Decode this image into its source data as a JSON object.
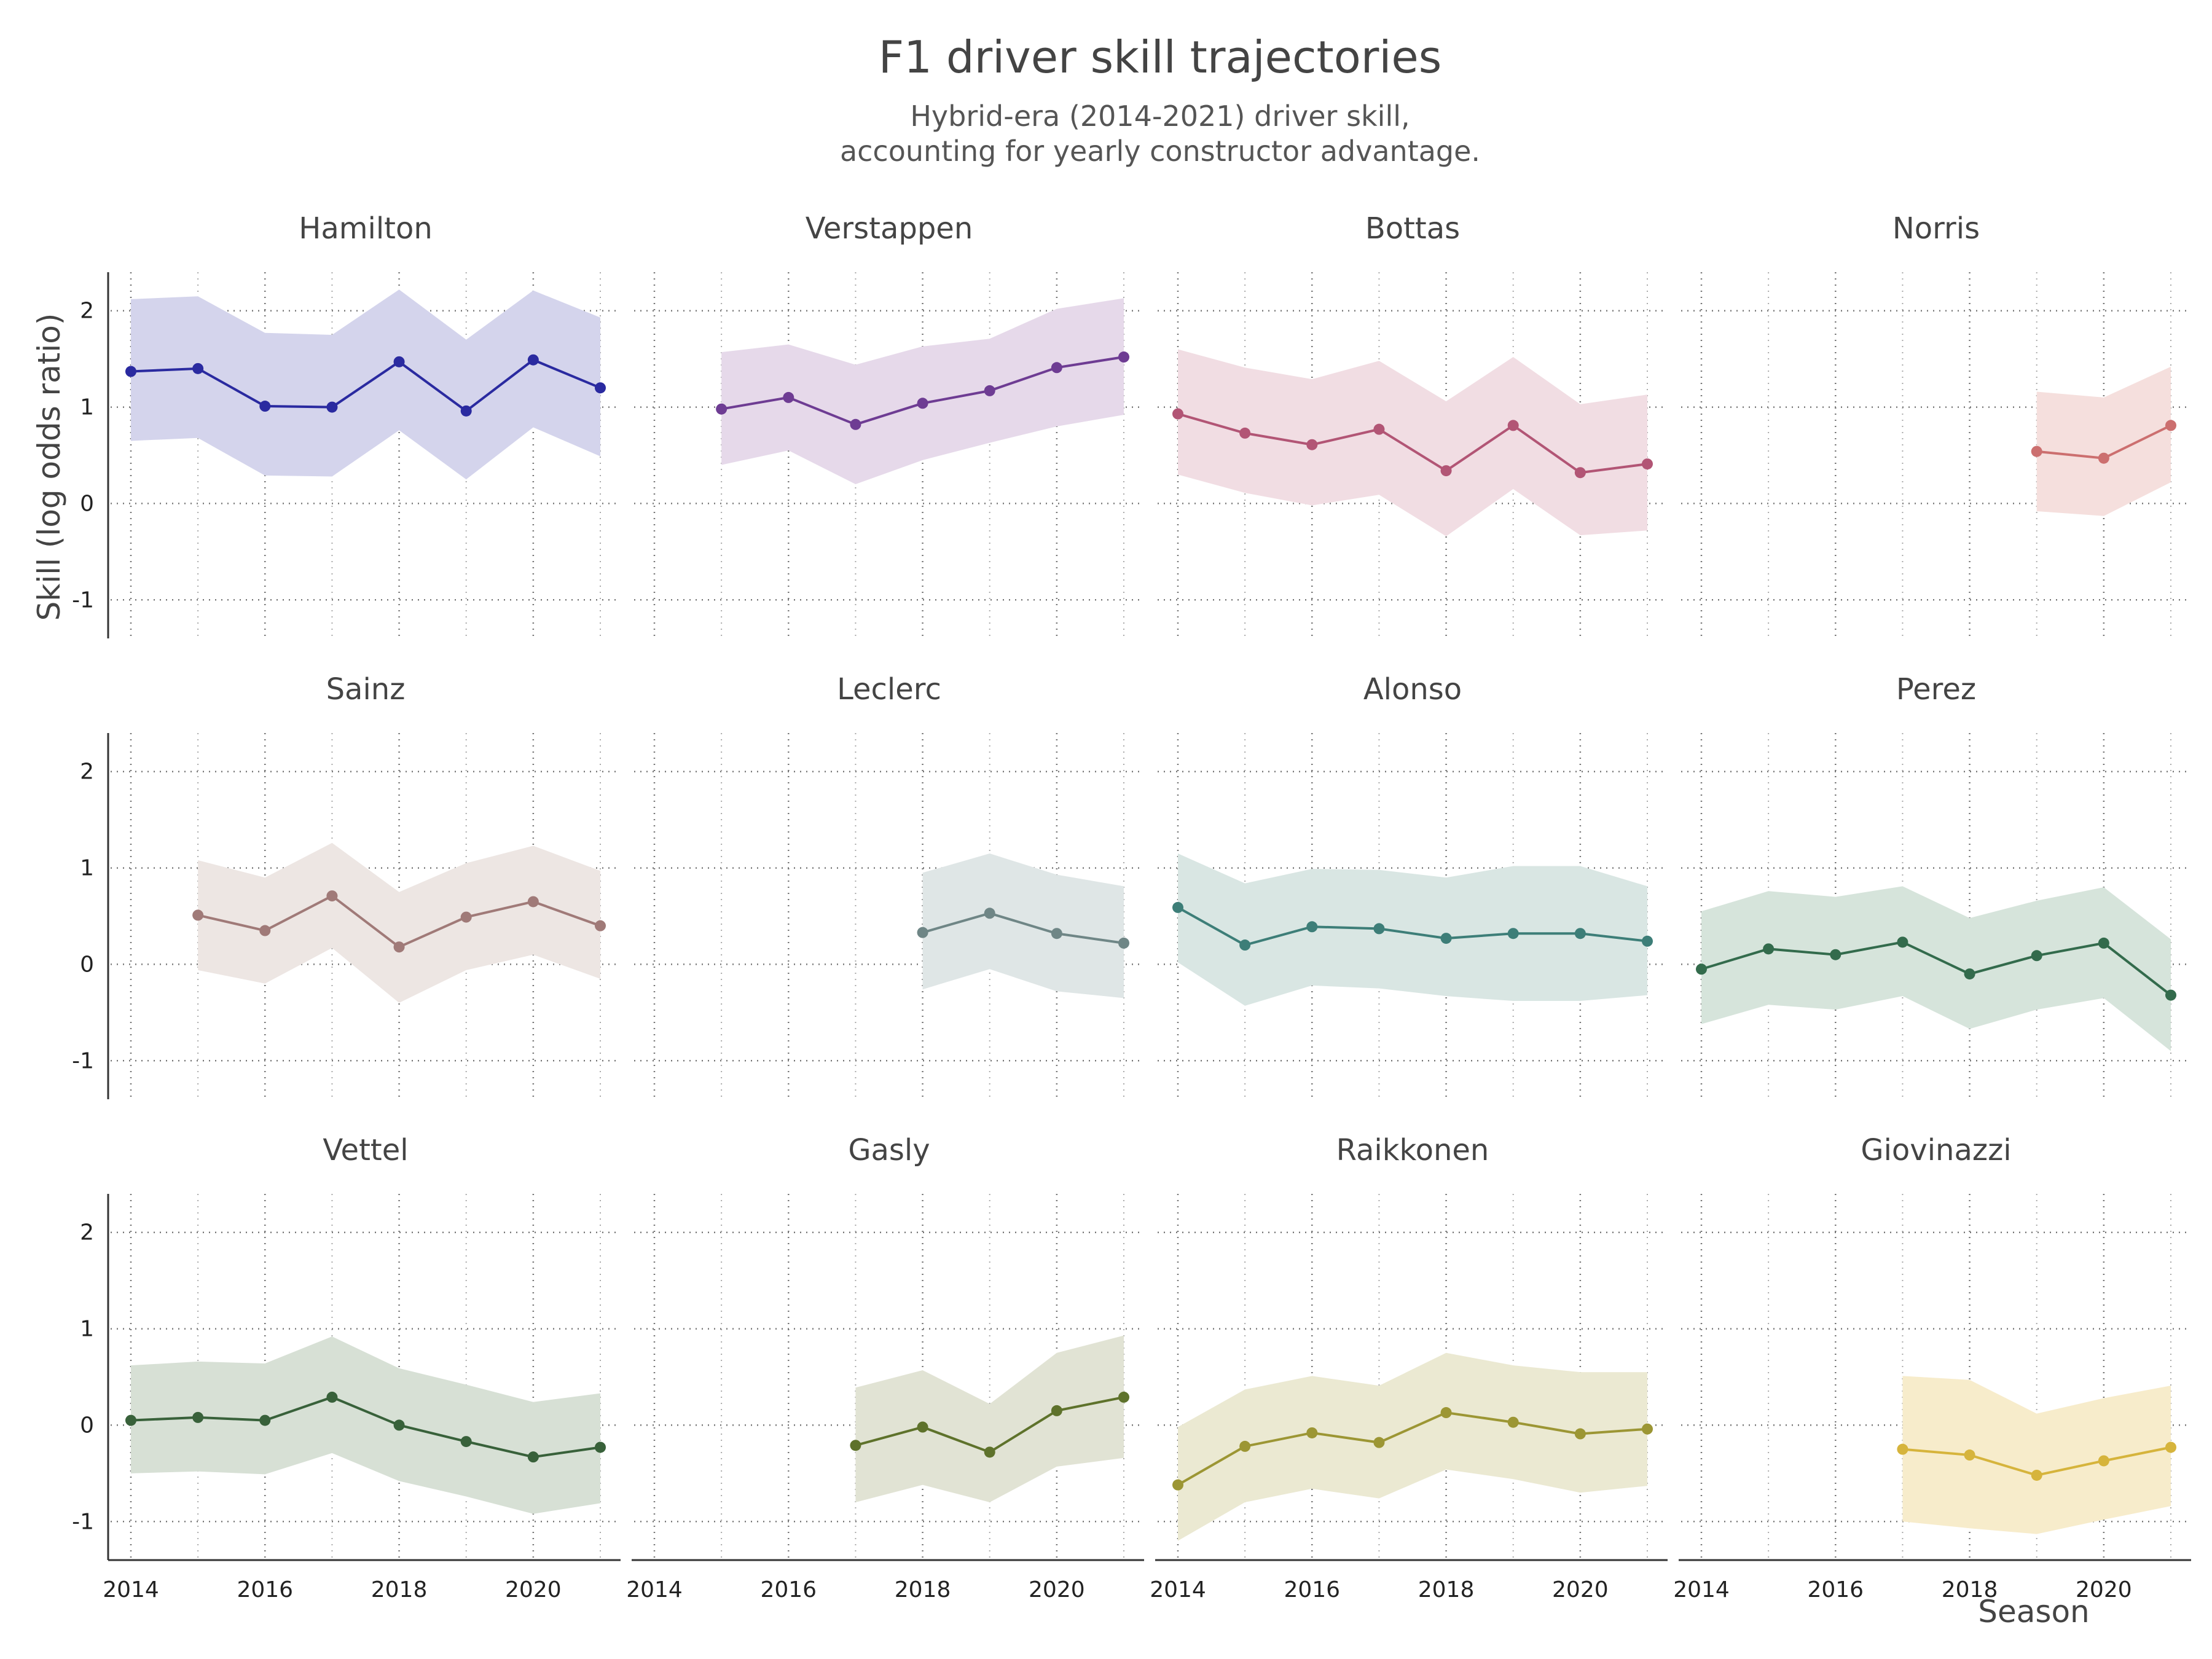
{
  "title": "F1 driver skill trajectories",
  "subtitle_lines": [
    "Hybrid-era (2014-2021) driver skill,",
    "accounting for yearly constructor advantage."
  ],
  "chart_data": {
    "type": "line",
    "facets": true,
    "xlabel": "Season",
    "ylabel": "Skill (log odds ratio)",
    "xlim": [
      2014,
      2021
    ],
    "ylim": [
      -1.4,
      2.4
    ],
    "x_ticks": [
      2014,
      2016,
      2018,
      2020
    ],
    "y_ticks": [
      -1,
      0,
      1,
      2
    ],
    "grid": true,
    "series": [
      {
        "name": "Hamilton",
        "color": "#2a2aa0",
        "band_color": "#d4d4ec",
        "x": [
          2014,
          2015,
          2016,
          2017,
          2018,
          2019,
          2020,
          2021
        ],
        "y": [
          1.37,
          1.4,
          1.01,
          1.0,
          1.47,
          0.96,
          1.49,
          1.2
        ],
        "lower": [
          0.65,
          0.68,
          0.29,
          0.28,
          0.76,
          0.25,
          0.79,
          0.49
        ],
        "upper": [
          2.12,
          2.15,
          1.77,
          1.75,
          2.22,
          1.7,
          2.21,
          1.93
        ]
      },
      {
        "name": "Verstappen",
        "color": "#6e3c93",
        "band_color": "#e6d9ea",
        "x": [
          2015,
          2016,
          2017,
          2018,
          2019,
          2020,
          2021
        ],
        "y": [
          0.98,
          1.1,
          0.82,
          1.04,
          1.17,
          1.41,
          1.52
        ],
        "lower": [
          0.4,
          0.55,
          0.2,
          0.45,
          0.63,
          0.8,
          0.92
        ],
        "upper": [
          1.57,
          1.65,
          1.44,
          1.63,
          1.71,
          2.02,
          2.13
        ]
      },
      {
        "name": "Bottas",
        "color": "#b25575",
        "band_color": "#f1dde3",
        "x": [
          2014,
          2015,
          2016,
          2017,
          2018,
          2019,
          2020,
          2021
        ],
        "y": [
          0.93,
          0.73,
          0.61,
          0.77,
          0.34,
          0.81,
          0.32,
          0.41
        ],
        "lower": [
          0.3,
          0.11,
          -0.02,
          0.09,
          -0.34,
          0.15,
          -0.33,
          -0.28
        ],
        "upper": [
          1.6,
          1.41,
          1.29,
          1.48,
          1.06,
          1.52,
          1.03,
          1.13
        ]
      },
      {
        "name": "Norris",
        "color": "#cc6f6f",
        "band_color": "#f5dfdd",
        "x": [
          2019,
          2020,
          2021
        ],
        "y": [
          0.54,
          0.47,
          0.81
        ],
        "lower": [
          -0.08,
          -0.13,
          0.22
        ],
        "upper": [
          1.16,
          1.1,
          1.42
        ]
      },
      {
        "name": "Sainz",
        "color": "#a07a78",
        "band_color": "#ede6e3",
        "x": [
          2015,
          2016,
          2017,
          2018,
          2019,
          2020,
          2021
        ],
        "y": [
          0.51,
          0.35,
          0.71,
          0.18,
          0.49,
          0.65,
          0.4
        ],
        "lower": [
          -0.06,
          -0.2,
          0.17,
          -0.4,
          -0.06,
          0.1,
          -0.15
        ],
        "upper": [
          1.08,
          0.9,
          1.26,
          0.75,
          1.05,
          1.23,
          0.97
        ]
      },
      {
        "name": "Leclerc",
        "color": "#6f8686",
        "band_color": "#dfe6e6",
        "x": [
          2018,
          2019,
          2020,
          2021
        ],
        "y": [
          0.33,
          0.53,
          0.32,
          0.22
        ],
        "lower": [
          -0.26,
          -0.05,
          -0.28,
          -0.35
        ],
        "upper": [
          0.95,
          1.15,
          0.93,
          0.81
        ]
      },
      {
        "name": "Alonso",
        "color": "#3d7e78",
        "band_color": "#d9e6e3",
        "x": [
          2014,
          2015,
          2016,
          2017,
          2018,
          2019,
          2020,
          2021
        ],
        "y": [
          0.59,
          0.2,
          0.39,
          0.37,
          0.27,
          0.32,
          0.32,
          0.24
        ],
        "lower": [
          0.02,
          -0.43,
          -0.22,
          -0.25,
          -0.33,
          -0.38,
          -0.38,
          -0.32
        ],
        "upper": [
          1.15,
          0.84,
          0.99,
          0.98,
          0.9,
          1.02,
          1.02,
          0.81
        ]
      },
      {
        "name": "Perez",
        "color": "#336b4c",
        "band_color": "#d6e4db",
        "x": [
          2014,
          2015,
          2016,
          2017,
          2018,
          2019,
          2020,
          2021
        ],
        "y": [
          -0.05,
          0.16,
          0.1,
          0.23,
          -0.1,
          0.09,
          0.22,
          -0.32
        ],
        "lower": [
          -0.62,
          -0.42,
          -0.47,
          -0.33,
          -0.67,
          -0.47,
          -0.35,
          -0.9
        ],
        "upper": [
          0.55,
          0.76,
          0.7,
          0.81,
          0.48,
          0.66,
          0.8,
          0.26
        ]
      },
      {
        "name": "Vettel",
        "color": "#38613a",
        "band_color": "#d7e0d5",
        "x": [
          2014,
          2015,
          2016,
          2017,
          2018,
          2019,
          2020,
          2021
        ],
        "y": [
          0.05,
          0.08,
          0.05,
          0.29,
          0.0,
          -0.17,
          -0.33,
          -0.23
        ],
        "lower": [
          -0.5,
          -0.48,
          -0.51,
          -0.29,
          -0.58,
          -0.74,
          -0.92,
          -0.81
        ],
        "upper": [
          0.62,
          0.66,
          0.64,
          0.92,
          0.59,
          0.42,
          0.24,
          0.33
        ]
      },
      {
        "name": "Gasly",
        "color": "#5e722b",
        "band_color": "#e1e3d4",
        "x": [
          2017,
          2018,
          2019,
          2020,
          2021
        ],
        "y": [
          -0.21,
          -0.02,
          -0.28,
          0.15,
          0.29
        ],
        "lower": [
          -0.8,
          -0.62,
          -0.8,
          -0.43,
          -0.34
        ],
        "upper": [
          0.39,
          0.57,
          0.22,
          0.75,
          0.93
        ]
      },
      {
        "name": "Raikkonen",
        "color": "#9c9634",
        "band_color": "#ebe9d2",
        "x": [
          2014,
          2015,
          2016,
          2017,
          2018,
          2019,
          2020,
          2021
        ],
        "y": [
          -0.62,
          -0.22,
          -0.08,
          -0.18,
          0.13,
          0.03,
          -0.09,
          -0.04
        ],
        "lower": [
          -1.2,
          -0.8,
          -0.66,
          -0.76,
          -0.46,
          -0.56,
          -0.7,
          -0.63
        ],
        "upper": [
          -0.02,
          0.37,
          0.51,
          0.41,
          0.75,
          0.62,
          0.55,
          0.55
        ]
      },
      {
        "name": "Giovinazzi",
        "color": "#d6b43c",
        "band_color": "#f7eccb",
        "x": [
          2017,
          2018,
          2019,
          2020,
          2021
        ],
        "y": [
          -0.25,
          -0.31,
          -0.52,
          -0.37,
          -0.23
        ],
        "lower": [
          -1.0,
          -1.07,
          -1.13,
          -0.98,
          -0.84
        ],
        "upper": [
          0.51,
          0.47,
          0.12,
          0.28,
          0.41
        ]
      }
    ]
  }
}
